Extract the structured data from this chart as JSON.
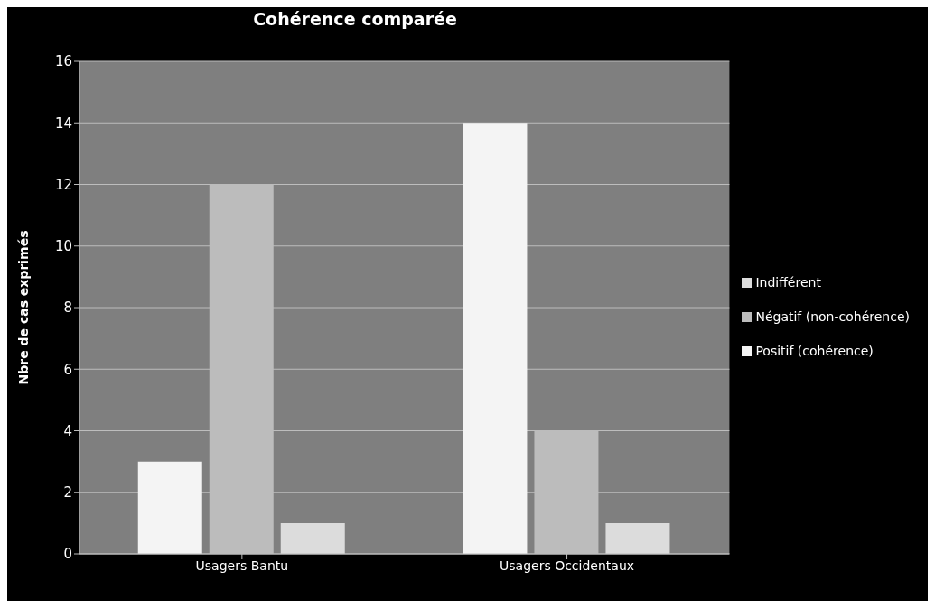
{
  "chart_data": {
    "type": "bar",
    "title": "Cohérence comparée",
    "ylabel": "Nbre de cas exprimés",
    "categories": [
      "Usagers Bantu",
      "Usagers Occidentaux"
    ],
    "series": [
      {
        "name": "Positif (cohérence)",
        "color": "#f4f4f4",
        "values": [
          3,
          14
        ]
      },
      {
        "name": "Négatif (non-cohérence)",
        "color": "#bcbcbc",
        "values": [
          12,
          4
        ]
      },
      {
        "name": "Indifférent",
        "color": "#dcdcdc",
        "values": [
          1,
          1
        ]
      }
    ],
    "ylim": [
      0,
      16
    ],
    "yticks": [
      0,
      2,
      4,
      6,
      8,
      10,
      12,
      14,
      16
    ],
    "grid": "y",
    "legend": "right"
  }
}
